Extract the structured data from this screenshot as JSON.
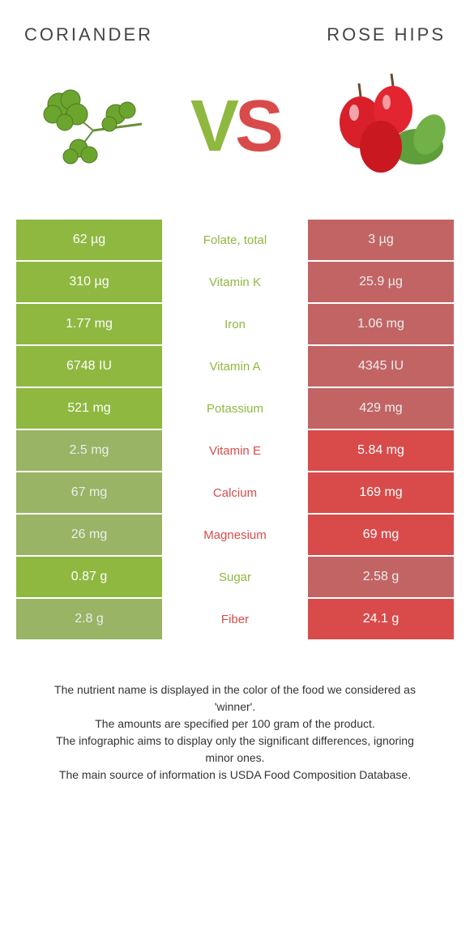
{
  "header": {
    "left_title": "Coriander",
    "right_title": "Rose hips"
  },
  "vs": {
    "v": "V",
    "s": "S"
  },
  "colors": {
    "green": "#8fb840",
    "red": "#d94b4b",
    "bg": "#ffffff",
    "text": "#333333"
  },
  "comparison": {
    "left_color": "#8fb840",
    "right_color": "#d94b4b",
    "rows": [
      {
        "nutrient": "Folate, total",
        "left": "62 µg",
        "right": "3 µg",
        "winner": "left"
      },
      {
        "nutrient": "Vitamin K",
        "left": "310 µg",
        "right": "25.9 µg",
        "winner": "left"
      },
      {
        "nutrient": "Iron",
        "left": "1.77 mg",
        "right": "1.06 mg",
        "winner": "left"
      },
      {
        "nutrient": "Vitamin A",
        "left": "6748 IU",
        "right": "4345 IU",
        "winner": "left"
      },
      {
        "nutrient": "Potassium",
        "left": "521 mg",
        "right": "429 mg",
        "winner": "left"
      },
      {
        "nutrient": "Vitamin E",
        "left": "2.5 mg",
        "right": "5.84 mg",
        "winner": "right"
      },
      {
        "nutrient": "Calcium",
        "left": "67 mg",
        "right": "169 mg",
        "winner": "right"
      },
      {
        "nutrient": "Magnesium",
        "left": "26 mg",
        "right": "69 mg",
        "winner": "right"
      },
      {
        "nutrient": "Sugar",
        "left": "0.87 g",
        "right": "2.58 g",
        "winner": "left"
      },
      {
        "nutrient": "Fiber",
        "left": "2.8 g",
        "right": "24.1 g",
        "winner": "right"
      }
    ]
  },
  "footer": {
    "line1": "The nutrient name is displayed in the color of the food we considered as 'winner'.",
    "line2": "The amounts are specified per 100 gram of the product.",
    "line3": "The infographic aims to display only the significant differences, ignoring minor ones.",
    "line4": "The main source of information is USDA Food Composition Database."
  }
}
